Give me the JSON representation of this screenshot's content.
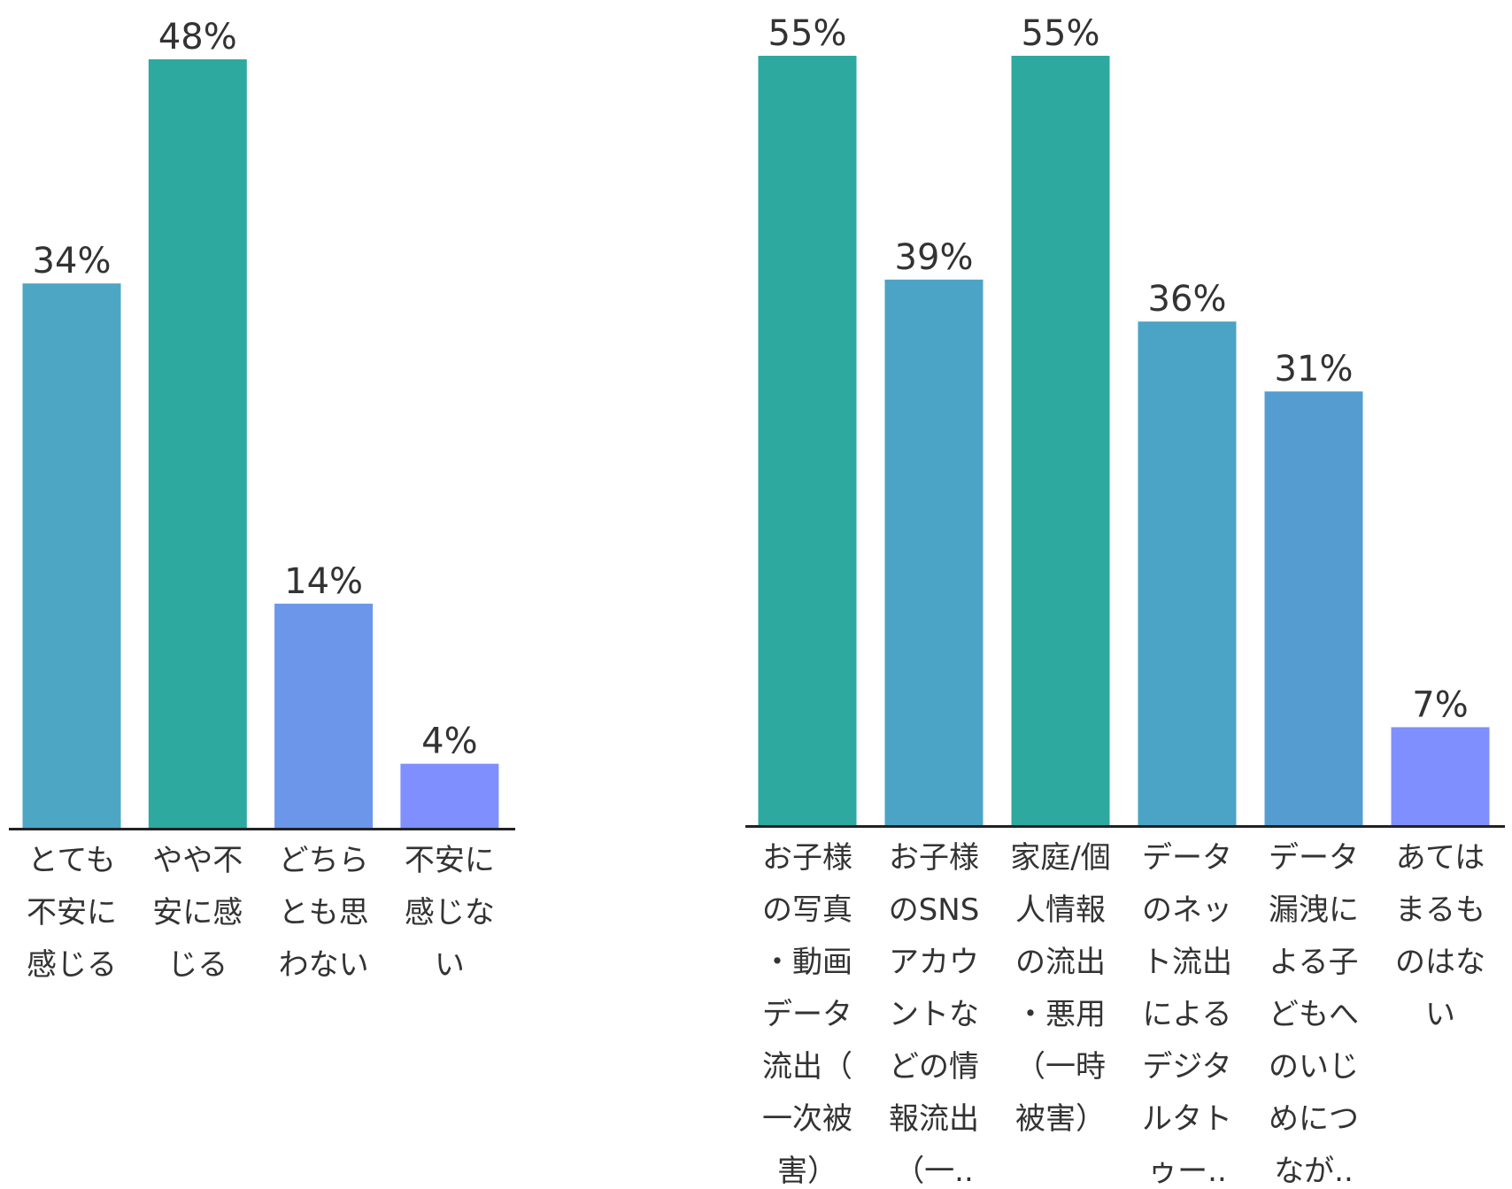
{
  "chart_data": [
    {
      "type": "bar",
      "categories": [
        "とても不安に感じる",
        "やや不安に感じる",
        "どちらとも思わない",
        "不安に感じない"
      ],
      "tick_lines": [
        [
          "とても",
          "不安に",
          "感じる"
        ],
        [
          "やや不",
          "安に感",
          "じる"
        ],
        [
          "どちら",
          "とも思",
          "わない"
        ],
        [
          "不安に",
          "感じな",
          "い"
        ]
      ],
      "values": [
        34,
        48,
        14,
        4
      ],
      "value_labels": [
        "34%",
        "48%",
        "14%",
        "4%"
      ],
      "colors": [
        "#4da6c4",
        "#2ea9a0",
        "#6c96ea",
        "#7f8ffd"
      ],
      "ylim": [
        0,
        48
      ],
      "title": "",
      "xlabel": "",
      "ylabel": "",
      "grid": false
    },
    {
      "type": "bar",
      "categories": [
        "お子様の写真・動画データ流出（一次被害）",
        "お子様のSNSアカウントなどの情報流出（一..",
        "家庭/個人情報の流出・悪用（一時被害）",
        "データのネット流出によるデジタルタトゥー..",
        "データ漏洩による子どもへのいじめにつなが..",
        "あてはまるものはない"
      ],
      "tick_lines": [
        [
          "お子様",
          "の写真",
          "・動画",
          "データ",
          "流出（",
          "一次被",
          "害）"
        ],
        [
          "お子様",
          "のSNS",
          "アカウ",
          "ントな",
          "どの情",
          "報流出",
          "（一.."
        ],
        [
          "家庭/個",
          "人情報",
          "の流出",
          "・悪用",
          "（一時",
          "被害）"
        ],
        [
          "データ",
          "のネッ",
          "ト流出",
          "による",
          "デジタ",
          "ルタト",
          "ゥー.."
        ],
        [
          "データ",
          "漏洩に",
          "よる子",
          "どもへ",
          "のいじ",
          "めにつ",
          "なが.."
        ],
        [
          "あては",
          "まるも",
          "のはな",
          "い"
        ]
      ],
      "values": [
        55,
        39,
        55,
        36,
        31,
        7
      ],
      "value_labels": [
        "55%",
        "39%",
        "55%",
        "36%",
        "31%",
        "7%"
      ],
      "colors": [
        "#2ea9a0",
        "#4ba3c5",
        "#2ea9a0",
        "#4ba3c5",
        "#559dd0",
        "#7f8ffd"
      ],
      "ylim": [
        0,
        55
      ],
      "title": "",
      "xlabel": "",
      "ylabel": "",
      "grid": false
    }
  ]
}
